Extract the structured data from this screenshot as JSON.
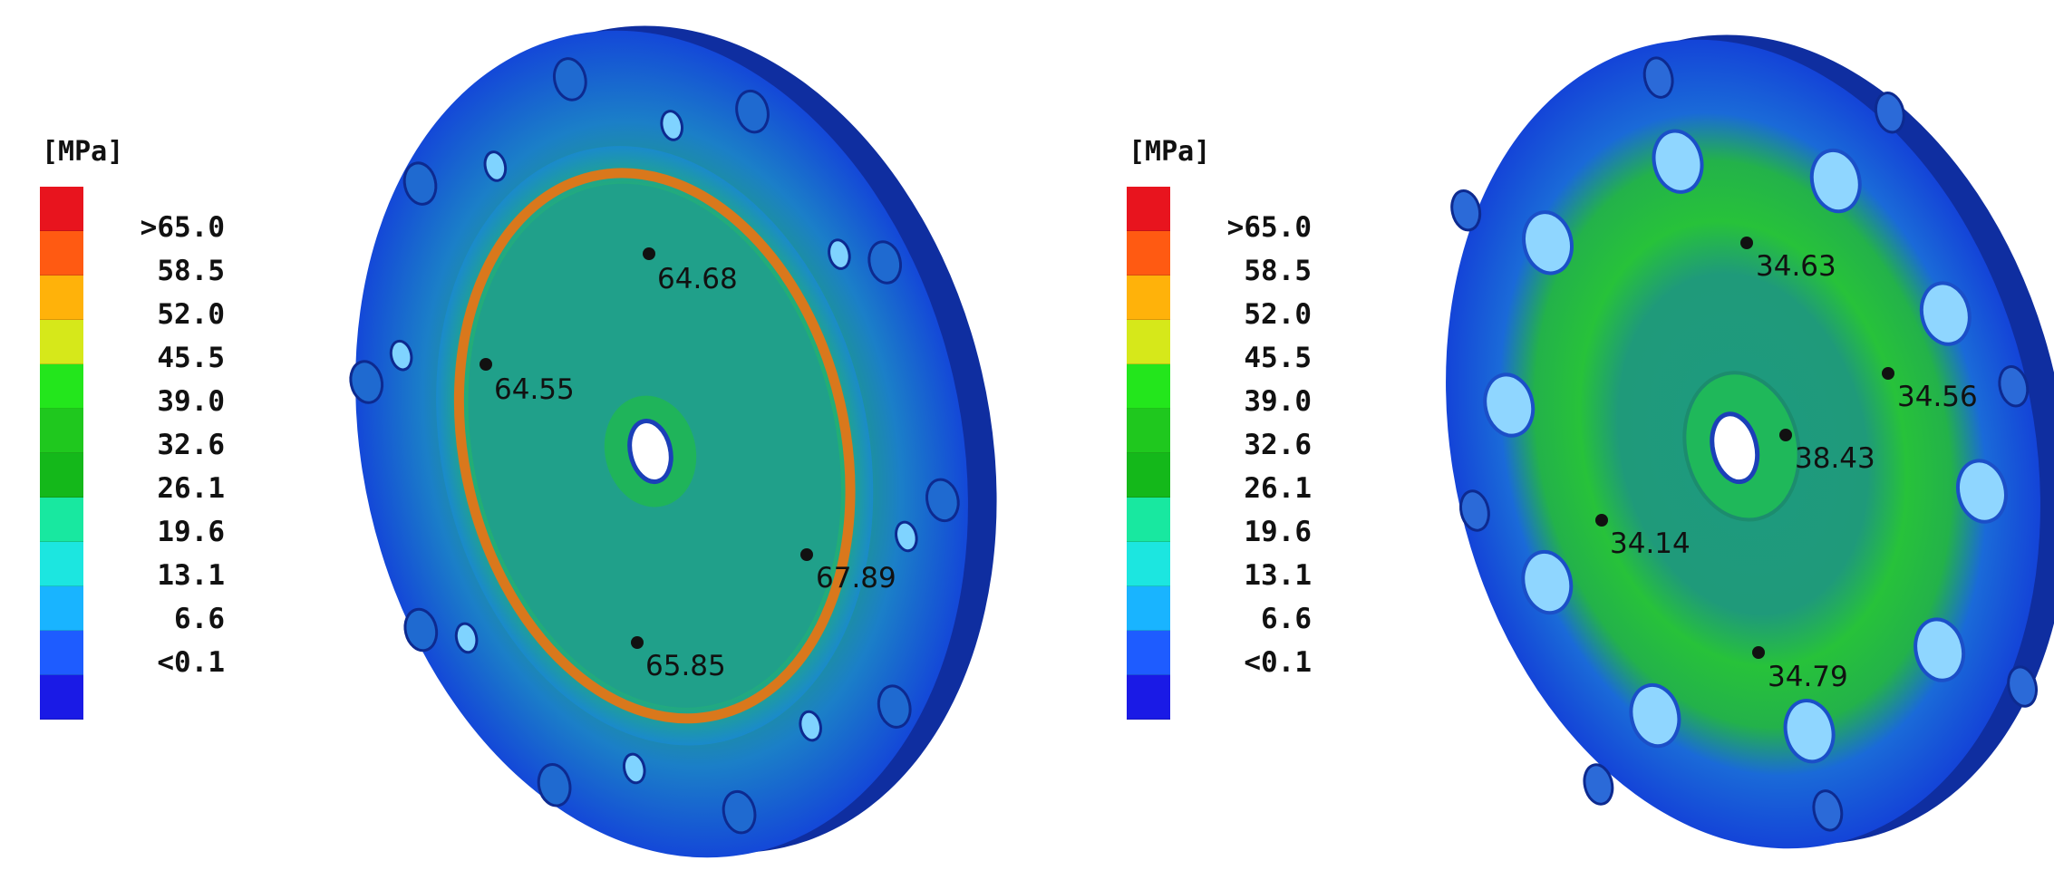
{
  "legend_left": {
    "unit": "[MPa]",
    "ticks": [
      ">65.0",
      "58.5",
      "52.0",
      "45.5",
      "39.0",
      "32.6",
      "26.1",
      "19.6",
      "13.1",
      "6.6",
      "<0.1"
    ],
    "colors": [
      "#e8141e",
      "#ff5a12",
      "#ffb20a",
      "#d6e81a",
      "#23e61c",
      "#1fc81e",
      "#14b81a",
      "#18e8a0",
      "#1ce6e0",
      "#19b4ff",
      "#1e5cff",
      "#1a1ae6"
    ]
  },
  "legend_right": {
    "unit": "[MPa]",
    "ticks": [
      ">65.0",
      "58.5",
      "52.0",
      "45.5",
      "39.0",
      "32.6",
      "26.1",
      "19.6",
      "13.1",
      "6.6",
      "<0.1"
    ],
    "colors": [
      "#e8141e",
      "#ff5a12",
      "#ffb20a",
      "#d6e81a",
      "#23e61c",
      "#1fc81e",
      "#14b81a",
      "#18e8a0",
      "#1ce6e0",
      "#19b4ff",
      "#1e5cff",
      "#1a1ae6"
    ]
  },
  "left_model": {
    "probes": [
      "64.68",
      "64.55",
      "67.89",
      "65.85"
    ]
  },
  "right_model": {
    "probes": [
      "34.63",
      "34.56",
      "38.43",
      "34.14",
      "34.79"
    ]
  }
}
